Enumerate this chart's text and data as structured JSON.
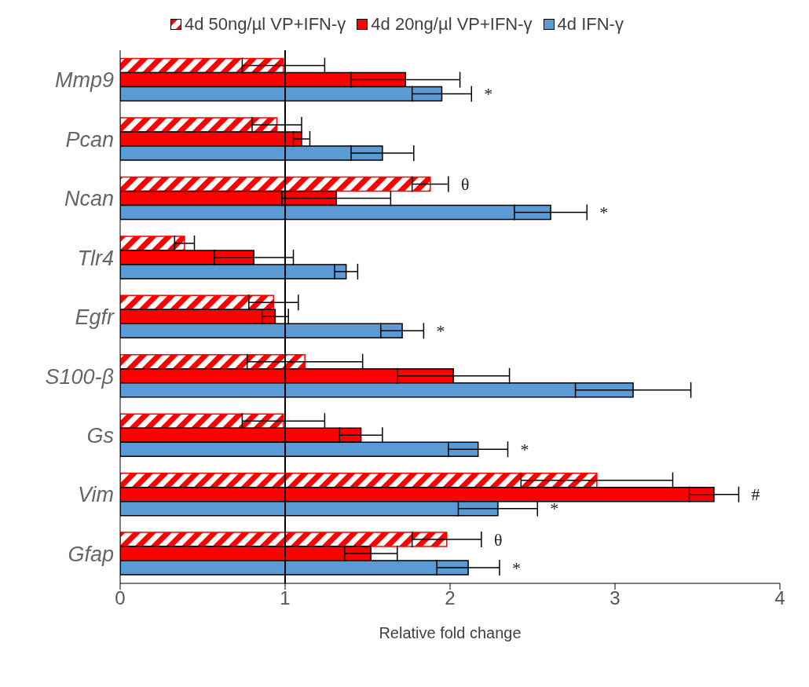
{
  "chart_data": {
    "type": "bar",
    "orientation": "horizontal",
    "xlabel": "Relative fold change",
    "categories": [
      "Mmp9",
      "Pcan",
      "Ncan",
      "Tlr4",
      "Egfr",
      "S100-β",
      "Gs",
      "Vim",
      "Gfap"
    ],
    "series": [
      {
        "name": "4d 50ng/µl  VP+IFN-γ",
        "color": "#ff0000",
        "values": [
          0.99,
          0.95,
          1.88,
          0.39,
          0.93,
          1.12,
          0.99,
          2.89,
          1.98
        ],
        "errors": [
          0.25,
          0.15,
          0.11,
          0.06,
          0.15,
          0.35,
          0.25,
          0.46,
          0.21
        ],
        "value_labels": [
          null,
          null,
          "θ",
          null,
          null,
          null,
          null,
          null,
          "θ"
        ]
      },
      {
        "name": "4d 20ng/µl  VP+IFN-γ",
        "color": "#ff0000",
        "values": [
          1.73,
          1.1,
          1.31,
          0.81,
          0.94,
          2.02,
          1.46,
          3.6,
          1.52
        ],
        "errors": [
          0.33,
          0.05,
          0.33,
          0.24,
          0.08,
          0.34,
          0.13,
          0.15,
          0.16
        ],
        "value_labels": [
          null,
          null,
          null,
          null,
          null,
          null,
          null,
          "#",
          null
        ]
      },
      {
        "name": "4d IFN-γ",
        "color": "#5b9bd5",
        "values": [
          1.95,
          1.59,
          2.61,
          1.37,
          1.71,
          3.11,
          2.17,
          2.29,
          2.11
        ],
        "errors": [
          0.18,
          0.19,
          0.22,
          0.07,
          0.13,
          0.35,
          0.18,
          0.24,
          0.19
        ],
        "value_labels": [
          "*",
          null,
          "*",
          null,
          "*",
          null,
          "*",
          "*",
          "*"
        ]
      }
    ],
    "xlim": [
      0,
      4
    ],
    "xticks": [
      0,
      1,
      2,
      3,
      4
    ],
    "legend": "top",
    "ref_lines": [
      {
        "axis": "x",
        "value": 1,
        "color": "#000000"
      }
    ]
  }
}
